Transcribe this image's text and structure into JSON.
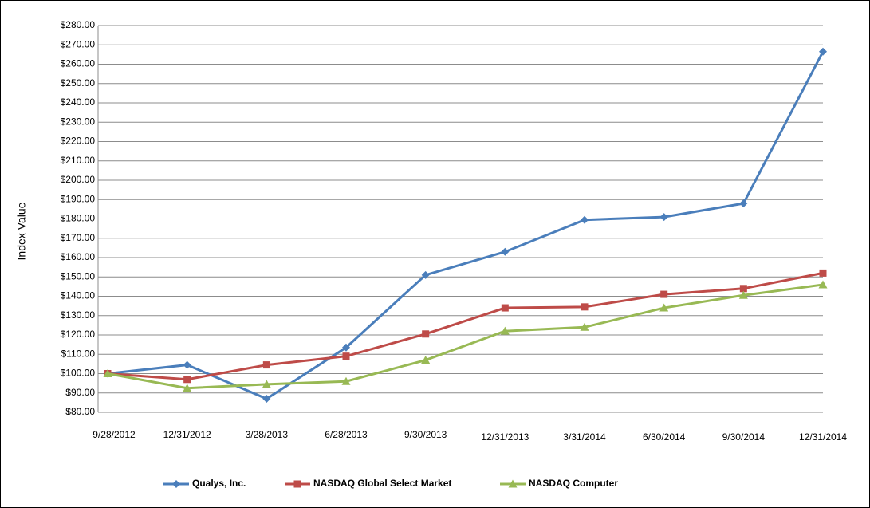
{
  "chart_data": {
    "type": "line",
    "y_label": "Index Value",
    "categories": [
      "9/28/2012",
      "12/31/2012",
      "3/28/2013",
      "6/28/2013",
      "9/30/2013",
      "12/31/2013",
      "3/31/2014",
      "6/30/2014",
      "9/30/2014",
      "12/31/2014"
    ],
    "series": [
      {
        "name": "Qualys, Inc.",
        "color": "#4a7ebb",
        "marker": "diamond",
        "values": [
          100,
          104.5,
          87,
          113.5,
          151,
          163,
          179.5,
          181,
          188,
          266.5
        ]
      },
      {
        "name": "NASDAQ Global Select Market",
        "color": "#be4b48",
        "marker": "square",
        "values": [
          100,
          97,
          104.5,
          109,
          120.5,
          134,
          134.5,
          141,
          144,
          152
        ]
      },
      {
        "name": "NASDAQ Computer",
        "color": "#98b954",
        "marker": "triangle",
        "values": [
          100,
          92.5,
          94.5,
          96,
          107,
          122,
          124,
          134,
          140.5,
          146
        ]
      }
    ],
    "ylim": [
      80,
      280
    ],
    "yticks": [
      {
        "value": 80,
        "label": "$80.00"
      },
      {
        "value": 90,
        "label": "$90.00"
      },
      {
        "value": 100,
        "label": "$100.00"
      },
      {
        "value": 110,
        "label": "$110.00"
      },
      {
        "value": 120,
        "label": "$120.00"
      },
      {
        "value": 130,
        "label": "$130.00"
      },
      {
        "value": 140,
        "label": "$140.00"
      },
      {
        "value": 150,
        "label": "$150.00"
      },
      {
        "value": 160,
        "label": "$160.00"
      },
      {
        "value": 170,
        "label": "$170.00"
      },
      {
        "value": 180,
        "label": "$180.00"
      },
      {
        "value": 190,
        "label": "$190.00"
      },
      {
        "value": 200,
        "label": "$200.00"
      },
      {
        "value": 210,
        "label": "$210.00"
      },
      {
        "value": 220,
        "label": "$220.00"
      },
      {
        "value": 230,
        "label": "$230.00"
      },
      {
        "value": 240,
        "label": "$240.00"
      },
      {
        "value": 250,
        "label": "$250.00"
      },
      {
        "value": 260,
        "label": "$260.00"
      },
      {
        "value": 270,
        "label": "$270.00"
      },
      {
        "value": 280,
        "label": "$280.00"
      }
    ],
    "grid": true,
    "legend": "bottom"
  }
}
